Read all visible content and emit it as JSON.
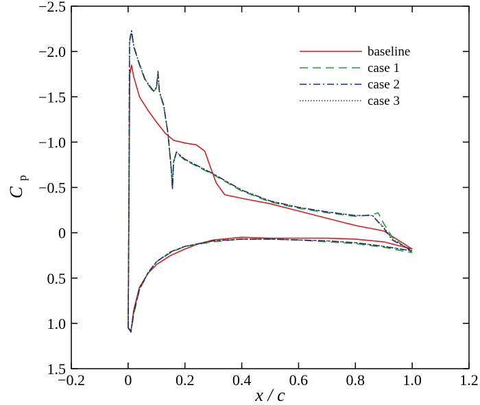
{
  "chart_data": {
    "type": "line",
    "xlabel": "x / c",
    "ylabel": "C",
    "ylabel_subscript": "p",
    "xlim": [
      -0.2,
      1.2
    ],
    "ylim": [
      -2.5,
      1.5
    ],
    "y_inverted": true,
    "grid": false,
    "legend_position": "top-right",
    "x_ticks": [
      "−0.2",
      "0",
      "0.2",
      "0.4",
      "0.6",
      "0.8",
      "1.0",
      "1.2"
    ],
    "x_tick_values": [
      -0.2,
      0,
      0.2,
      0.4,
      0.6,
      0.8,
      1.0,
      1.2
    ],
    "y_ticks": [
      "−2.5",
      "−2.0",
      "−1.5",
      "−1.0",
      "−0.5",
      "0",
      "0.5",
      "1.0",
      "1.5"
    ],
    "y_tick_values": [
      -2.5,
      -2.0,
      -1.5,
      -1.0,
      -0.5,
      0,
      0.5,
      1.0,
      1.5
    ],
    "series": [
      {
        "name": "baseline",
        "color": "#cc2222",
        "dash": "solid",
        "upper": [
          [
            0.0,
            1.05
          ],
          [
            0.003,
            -0.3
          ],
          [
            0.006,
            -1.75
          ],
          [
            0.012,
            -1.85
          ],
          [
            0.02,
            -1.72
          ],
          [
            0.04,
            -1.5
          ],
          [
            0.07,
            -1.35
          ],
          [
            0.1,
            -1.22
          ],
          [
            0.13,
            -1.1
          ],
          [
            0.16,
            -1.02
          ],
          [
            0.2,
            -0.99
          ],
          [
            0.24,
            -0.97
          ],
          [
            0.27,
            -0.9
          ],
          [
            0.29,
            -0.72
          ],
          [
            0.31,
            -0.55
          ],
          [
            0.34,
            -0.42
          ],
          [
            0.4,
            -0.38
          ],
          [
            0.5,
            -0.32
          ],
          [
            0.6,
            -0.24
          ],
          [
            0.7,
            -0.16
          ],
          [
            0.8,
            -0.08
          ],
          [
            0.9,
            -0.02
          ],
          [
            1.0,
            0.18
          ]
        ],
        "lower": [
          [
            0.0,
            1.05
          ],
          [
            0.01,
            1.08
          ],
          [
            0.02,
            0.85
          ],
          [
            0.04,
            0.6
          ],
          [
            0.07,
            0.45
          ],
          [
            0.1,
            0.35
          ],
          [
            0.15,
            0.25
          ],
          [
            0.2,
            0.18
          ],
          [
            0.25,
            0.12
          ],
          [
            0.3,
            0.08
          ],
          [
            0.4,
            0.05
          ],
          [
            0.5,
            0.06
          ],
          [
            0.6,
            0.06
          ],
          [
            0.7,
            0.06
          ],
          [
            0.8,
            0.07
          ],
          [
            0.9,
            0.1
          ],
          [
            1.0,
            0.18
          ]
        ]
      },
      {
        "name": "case 1",
        "color": "#22a032",
        "dash": "12,7",
        "upper": [
          [
            0.0,
            1.05
          ],
          [
            0.003,
            -0.5
          ],
          [
            0.005,
            -2.1
          ],
          [
            0.012,
            -2.22
          ],
          [
            0.02,
            -2.05
          ],
          [
            0.04,
            -1.85
          ],
          [
            0.06,
            -1.68
          ],
          [
            0.09,
            -1.55
          ],
          [
            0.1,
            -1.6
          ],
          [
            0.105,
            -1.75
          ],
          [
            0.11,
            -1.55
          ],
          [
            0.125,
            -1.4
          ],
          [
            0.14,
            -1.1
          ],
          [
            0.152,
            -0.7
          ],
          [
            0.156,
            -0.5
          ],
          [
            0.16,
            -0.78
          ],
          [
            0.17,
            -0.88
          ],
          [
            0.2,
            -0.8
          ],
          [
            0.3,
            -0.64
          ],
          [
            0.4,
            -0.46
          ],
          [
            0.5,
            -0.34
          ],
          [
            0.6,
            -0.27
          ],
          [
            0.7,
            -0.22
          ],
          [
            0.8,
            -0.18
          ],
          [
            0.86,
            -0.2
          ],
          [
            0.88,
            -0.22
          ],
          [
            0.9,
            -0.1
          ],
          [
            0.93,
            0.05
          ],
          [
            1.0,
            0.22
          ]
        ],
        "lower": [
          [
            0.0,
            1.05
          ],
          [
            0.01,
            1.1
          ],
          [
            0.02,
            0.9
          ],
          [
            0.04,
            0.63
          ],
          [
            0.07,
            0.45
          ],
          [
            0.1,
            0.32
          ],
          [
            0.15,
            0.22
          ],
          [
            0.2,
            0.15
          ],
          [
            0.3,
            0.1
          ],
          [
            0.4,
            0.07
          ],
          [
            0.5,
            0.07
          ],
          [
            0.6,
            0.08
          ],
          [
            0.7,
            0.1
          ],
          [
            0.8,
            0.12
          ],
          [
            0.9,
            0.16
          ],
          [
            1.0,
            0.22
          ]
        ]
      },
      {
        "name": "case 2",
        "color": "#1a2a9e",
        "dash": "10,4,2,4",
        "upper": [
          [
            0.0,
            1.05
          ],
          [
            0.003,
            -0.5
          ],
          [
            0.005,
            -2.12
          ],
          [
            0.012,
            -2.23
          ],
          [
            0.02,
            -2.06
          ],
          [
            0.04,
            -1.86
          ],
          [
            0.06,
            -1.69
          ],
          [
            0.09,
            -1.56
          ],
          [
            0.1,
            -1.61
          ],
          [
            0.105,
            -1.78
          ],
          [
            0.11,
            -1.56
          ],
          [
            0.125,
            -1.41
          ],
          [
            0.14,
            -1.1
          ],
          [
            0.152,
            -0.7
          ],
          [
            0.156,
            -0.48
          ],
          [
            0.16,
            -0.78
          ],
          [
            0.17,
            -0.89
          ],
          [
            0.2,
            -0.81
          ],
          [
            0.3,
            -0.65
          ],
          [
            0.4,
            -0.47
          ],
          [
            0.5,
            -0.35
          ],
          [
            0.6,
            -0.28
          ],
          [
            0.7,
            -0.23
          ],
          [
            0.8,
            -0.19
          ],
          [
            0.86,
            -0.19
          ],
          [
            0.9,
            -0.05
          ],
          [
            0.93,
            0.08
          ],
          [
            1.0,
            0.2
          ]
        ],
        "lower": [
          [
            0.0,
            1.05
          ],
          [
            0.01,
            1.09
          ],
          [
            0.02,
            0.88
          ],
          [
            0.04,
            0.62
          ],
          [
            0.07,
            0.44
          ],
          [
            0.1,
            0.32
          ],
          [
            0.15,
            0.21
          ],
          [
            0.2,
            0.15
          ],
          [
            0.3,
            0.09
          ],
          [
            0.4,
            0.07
          ],
          [
            0.5,
            0.07
          ],
          [
            0.6,
            0.08
          ],
          [
            0.7,
            0.09
          ],
          [
            0.8,
            0.11
          ],
          [
            0.9,
            0.15
          ],
          [
            1.0,
            0.2
          ]
        ]
      },
      {
        "name": "case 3",
        "color": "#333333",
        "dash": "1.5,2.5",
        "upper": [
          [
            0.0,
            1.05
          ],
          [
            0.003,
            -0.5
          ],
          [
            0.005,
            -2.11
          ],
          [
            0.012,
            -2.22
          ],
          [
            0.02,
            -2.05
          ],
          [
            0.04,
            -1.86
          ],
          [
            0.06,
            -1.69
          ],
          [
            0.09,
            -1.56
          ],
          [
            0.1,
            -1.61
          ],
          [
            0.105,
            -1.77
          ],
          [
            0.11,
            -1.56
          ],
          [
            0.125,
            -1.41
          ],
          [
            0.14,
            -1.1
          ],
          [
            0.152,
            -0.7
          ],
          [
            0.156,
            -0.49
          ],
          [
            0.16,
            -0.78
          ],
          [
            0.17,
            -0.89
          ],
          [
            0.2,
            -0.81
          ],
          [
            0.3,
            -0.65
          ],
          [
            0.4,
            -0.47
          ],
          [
            0.5,
            -0.35
          ],
          [
            0.6,
            -0.28
          ],
          [
            0.7,
            -0.23
          ],
          [
            0.8,
            -0.19
          ],
          [
            0.86,
            -0.19
          ],
          [
            0.9,
            -0.06
          ],
          [
            0.93,
            0.07
          ],
          [
            1.0,
            0.2
          ]
        ],
        "lower": [
          [
            0.0,
            1.05
          ],
          [
            0.01,
            1.09
          ],
          [
            0.02,
            0.88
          ],
          [
            0.04,
            0.62
          ],
          [
            0.07,
            0.44
          ],
          [
            0.1,
            0.32
          ],
          [
            0.15,
            0.21
          ],
          [
            0.2,
            0.15
          ],
          [
            0.3,
            0.09
          ],
          [
            0.4,
            0.07
          ],
          [
            0.5,
            0.07
          ],
          [
            0.6,
            0.08
          ],
          [
            0.7,
            0.09
          ],
          [
            0.8,
            0.11
          ],
          [
            0.9,
            0.15
          ],
          [
            1.0,
            0.2
          ]
        ]
      }
    ]
  }
}
